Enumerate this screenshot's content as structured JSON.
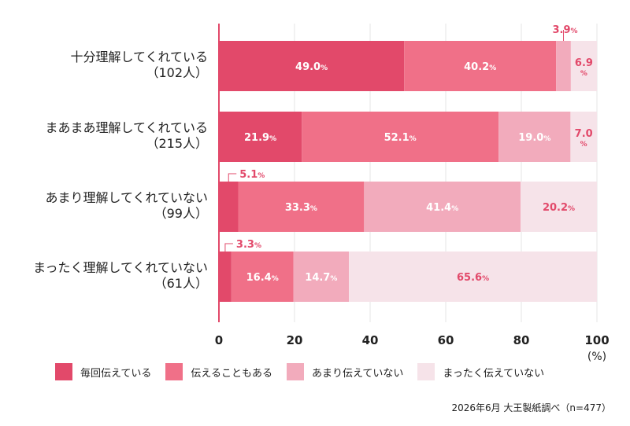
{
  "chart_data": {
    "type": "bar",
    "orientation": "horizontal",
    "stacked": true,
    "categories": [
      "十分理解してくれている\n（102人）",
      "まあまあ理解してくれている\n（215人）",
      "あまり理解してくれていない\n（99人）",
      "まったく理解してくれていない\n（61人）"
    ],
    "series": [
      {
        "name": "毎回伝えている",
        "color": "#e2496a",
        "values": [
          49.0,
          21.9,
          5.1,
          3.3
        ],
        "labels": [
          "49.0",
          "21.9",
          "5.1",
          "3.3"
        ]
      },
      {
        "name": "伝えることもある",
        "color": "#f07088",
        "values": [
          40.2,
          52.1,
          33.3,
          16.4
        ],
        "labels": [
          "40.2",
          "52.1",
          "33.3",
          "16.4"
        ]
      },
      {
        "name": "あまり伝えていない",
        "color": "#f2abbc",
        "values": [
          3.9,
          19.0,
          41.4,
          14.7
        ],
        "labels": [
          "3.9",
          "19.0",
          "41.4",
          "14.7"
        ]
      },
      {
        "name": "まったく伝えていない",
        "color": "#f6e3e9",
        "values": [
          6.9,
          7.0,
          20.2,
          65.6
        ],
        "labels": [
          "6.9",
          "7.0",
          "20.2",
          "65.6"
        ]
      }
    ],
    "x_ticks": [
      "0",
      "20",
      "40",
      "60",
      "80",
      "100"
    ],
    "xlim": [
      0,
      100
    ],
    "x_unit": "(%)",
    "percent_sign": "%",
    "grid": true,
    "legend_position": "bottom"
  },
  "source": "2026年6月 大王製紙調べ（n=477）"
}
